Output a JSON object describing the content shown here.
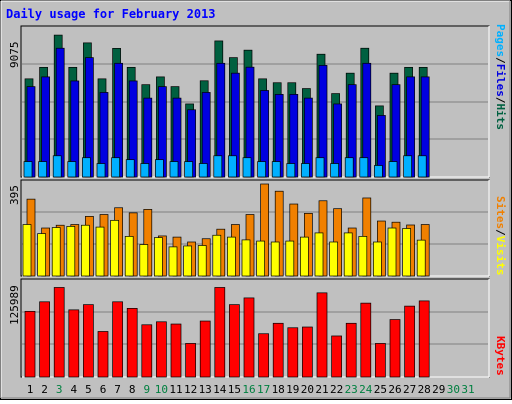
{
  "title": "Daily usage for February 2013",
  "colors": {
    "bg": "#c0c0c0",
    "frame_dark": "#808080",
    "pages": "#0000e0",
    "files": "#00b0ff",
    "hits": "#006040",
    "visits": "#f08000",
    "sites": "#ffff00",
    "kbytes": "#ff0000",
    "weekend_label": "#008040"
  },
  "right_labels": {
    "pages": "Pages",
    "files": "Files",
    "hits": "Hits",
    "sep": "/",
    "sites": "Sites",
    "visits": "Visits",
    "kbytes": "KBytes"
  },
  "chart_data": [
    {
      "type": "bar",
      "panel": "top",
      "ymax_label": "9075",
      "ylim": [
        0,
        9075
      ],
      "categories": [
        "1",
        "2",
        "3",
        "4",
        "5",
        "6",
        "7",
        "8",
        "9",
        "10",
        "11",
        "12",
        "13",
        "14",
        "15",
        "16",
        "17",
        "18",
        "19",
        "20",
        "21",
        "22",
        "23",
        "24",
        "25",
        "26",
        "27",
        "28",
        "29",
        "30",
        "31"
      ],
      "weekend_days": [
        "3",
        "9",
        "10",
        "16",
        "17",
        "23",
        "24",
        "30",
        "31"
      ],
      "series": [
        {
          "name": "Hits",
          "values": [
            6060,
            6770,
            8760,
            6770,
            8280,
            6060,
            7940,
            6770,
            5700,
            6180,
            5580,
            4510,
            5940,
            8400,
            7370,
            7830,
            6060,
            5820,
            5820,
            5460,
            7580,
            5150,
            6410,
            7950,
            4390,
            6410,
            6770,
            6770,
            0,
            0,
            0
          ]
        },
        {
          "name": "Files",
          "values": [
            5580,
            6180,
            7950,
            5930,
            7370,
            5220,
            7020,
            5930,
            4870,
            5580,
            4870,
            4150,
            5220,
            7020,
            6410,
            6780,
            5340,
            5100,
            5100,
            4870,
            6890,
            4510,
            5700,
            7020,
            3800,
            5700,
            6180,
            6180,
            0,
            0,
            0
          ]
        },
        {
          "name": "Pages",
          "values": [
            950,
            950,
            1310,
            950,
            1190,
            830,
            1190,
            1070,
            830,
            1070,
            950,
            950,
            830,
            1310,
            1310,
            1190,
            950,
            950,
            830,
            830,
            1190,
            830,
            1190,
            1190,
            710,
            950,
            1310,
            1310,
            0,
            0,
            0
          ]
        }
      ]
    },
    {
      "type": "bar",
      "panel": "middle",
      "ymax_label": "395",
      "ylim": [
        0,
        395
      ],
      "series": [
        {
          "name": "Visits",
          "values": [
            330,
            206,
            218,
            221,
            256,
            264,
            293,
            271,
            286,
            172,
            167,
            146,
            160,
            201,
            221,
            264,
            395,
            364,
            309,
            269,
            323,
            289,
            206,
            335,
            236,
            231,
            219,
            221,
            0,
            0,
            0
          ]
        },
        {
          "name": "Sites",
          "values": [
            221,
            182,
            208,
            213,
            218,
            210,
            239,
            170,
            135,
            165,
            125,
            129,
            131,
            175,
            167,
            155,
            150,
            146,
            150,
            167,
            185,
            146,
            185,
            170,
            146,
            206,
            204,
            154,
            0,
            0,
            0
          ]
        }
      ]
    },
    {
      "type": "bar",
      "panel": "bottom",
      "ymax_label": "125989",
      "ylim": [
        0,
        125989
      ],
      "series": [
        {
          "name": "KBytes",
          "values": [
            88000,
            100800,
            120000,
            90000,
            97000,
            61000,
            100800,
            92000,
            70000,
            74000,
            71000,
            45000,
            75000,
            120000,
            97000,
            106000,
            58000,
            72000,
            66000,
            67000,
            112800,
            55000,
            72000,
            99000,
            45000,
            77000,
            95000,
            102000,
            0,
            0,
            0
          ]
        }
      ]
    }
  ]
}
